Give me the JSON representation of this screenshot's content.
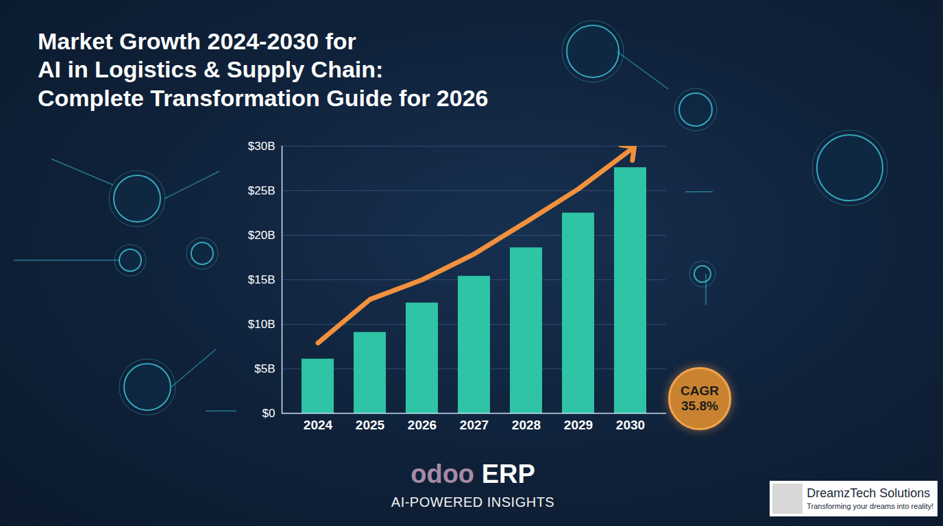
{
  "chart_data": {
    "type": "bar",
    "title": "Market Growth 2024-2030 for\nAI in Logistics & Supply Chain:\nComplete Transformation Guide for 2026",
    "categories": [
      "2024",
      "2025",
      "2026",
      "2027",
      "2028",
      "2029",
      "2030"
    ],
    "series": [
      {
        "type": "bar",
        "color": "#2ec4a5",
        "values": [
          6.1,
          9.1,
          12.4,
          15.4,
          18.6,
          22.5,
          27.6
        ]
      },
      {
        "type": "line",
        "color": "#f2913d",
        "marker": "arrow",
        "values": [
          7.9,
          12.8,
          15.0,
          17.9,
          21.5,
          25.2,
          29.6
        ]
      }
    ],
    "ylim": [
      0,
      30
    ],
    "yticks": [
      {
        "value": 0,
        "label": "$0"
      },
      {
        "value": 5,
        "label": "$5B"
      },
      {
        "value": 10,
        "label": "$10B"
      },
      {
        "value": 15,
        "label": "$15B"
      },
      {
        "value": 20,
        "label": "$20B"
      },
      {
        "value": 25,
        "label": "$25B"
      },
      {
        "value": 30,
        "label": "$30B"
      }
    ],
    "grid": true,
    "annotations": [
      "CAGR\n35.8%",
      "odoo ERP",
      "AI-POWERED INSIGHTS",
      "DreamzTech Solutions",
      "Transforming your dreams into reality!"
    ]
  }
}
